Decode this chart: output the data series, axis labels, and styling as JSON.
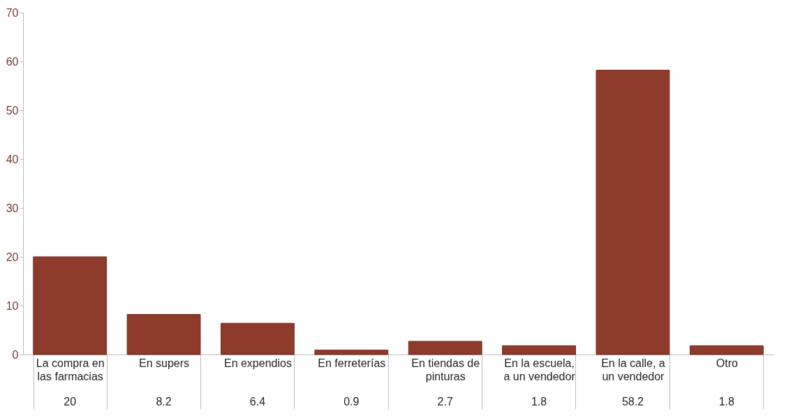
{
  "chart_data": {
    "type": "bar",
    "categories": [
      "La compra en las farmacias",
      "En supers",
      "En expendios",
      "En ferreterías",
      "En tiendas de pinturas",
      "En la escuela, a un vendedor",
      "En la calle, a un vendedor",
      "Otro"
    ],
    "values": [
      20,
      8.2,
      6.4,
      0.9,
      2.7,
      1.8,
      58.2,
      1.8
    ],
    "color": "#8e3b2b",
    "ylim": [
      0,
      70
    ],
    "yticks": [
      0,
      10,
      20,
      30,
      40,
      50,
      60,
      70
    ],
    "grid": false,
    "data_labels": true
  }
}
